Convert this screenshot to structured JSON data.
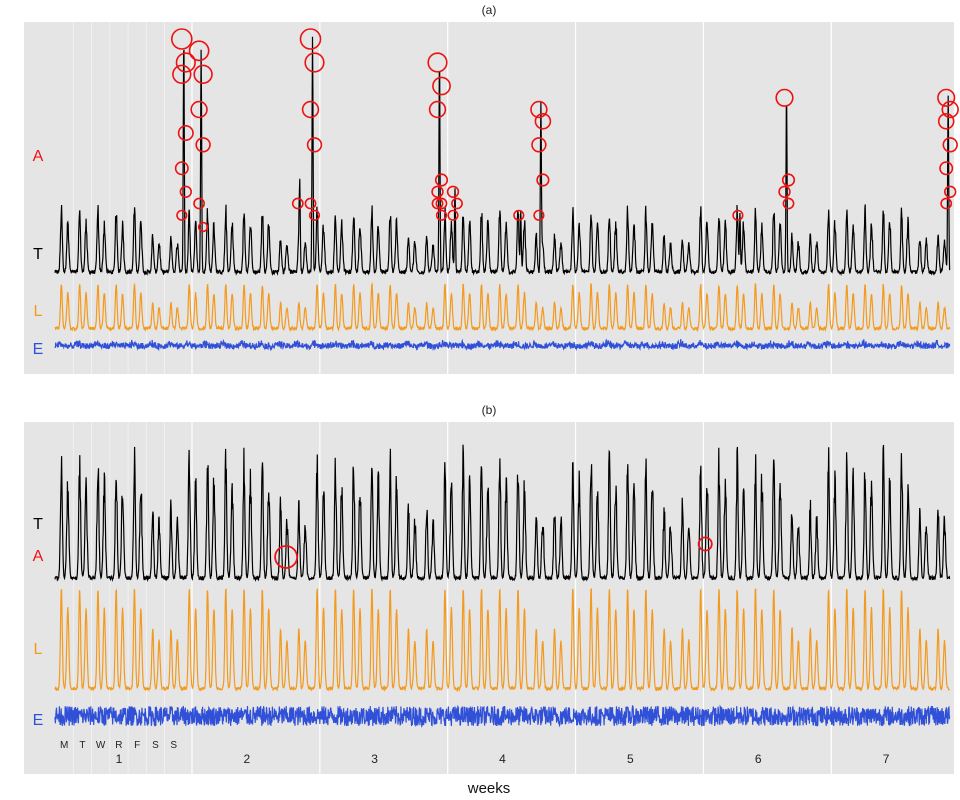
{
  "chart_data": {
    "type": "line",
    "xlabel": "weeks",
    "x_week_ticks": [
      "1",
      "2",
      "3",
      "4",
      "5",
      "6",
      "7"
    ],
    "x_day_ticks": [
      "M",
      "T",
      "W",
      "R",
      "F",
      "S",
      "S"
    ],
    "colors": {
      "T": "#000000",
      "A": "#ee1111",
      "L": "#f39a1e",
      "E": "#3050d8"
    },
    "panels": [
      {
        "title": "(a)",
        "row_labels": [
          "A",
          "T",
          "L",
          "E"
        ],
        "series": [
          {
            "name": "T",
            "description": "total: daily double-peaked profile plus anomaly spikes"
          },
          {
            "name": "L",
            "description": "low-rank weekly component"
          },
          {
            "name": "E",
            "description": "noise component"
          }
        ],
        "anomaly_markers": [
          {
            "day": 7.05,
            "magnitudes": [
              1.0,
              0.9,
              0.85,
              0.6,
              0.45,
              0.35,
              0.25
            ]
          },
          {
            "day": 8.0,
            "magnitudes": [
              0.95,
              0.85,
              0.7,
              0.55,
              0.3,
              0.2
            ]
          },
          {
            "day": 13.4,
            "magnitudes": [
              0.3
            ]
          },
          {
            "day": 14.1,
            "magnitudes": [
              1.0,
              0.9,
              0.7,
              0.55,
              0.3,
              0.25
            ]
          },
          {
            "day": 21.05,
            "magnitudes": [
              0.9,
              0.8,
              0.7,
              0.4,
              0.35,
              0.3,
              0.3,
              0.25
            ]
          },
          {
            "day": 21.9,
            "magnitudes": [
              0.35,
              0.3,
              0.25
            ]
          },
          {
            "day": 25.5,
            "magnitudes": [
              0.25
            ]
          },
          {
            "day": 26.6,
            "magnitudes": [
              0.7,
              0.65,
              0.55,
              0.4,
              0.25
            ]
          },
          {
            "day": 37.5,
            "magnitudes": [
              0.25
            ]
          },
          {
            "day": 40.05,
            "magnitudes": [
              0.75,
              0.4,
              0.35,
              0.3
            ]
          },
          {
            "day": 48.9,
            "magnitudes": [
              0.75,
              0.7,
              0.65,
              0.55,
              0.45,
              0.35,
              0.3
            ]
          }
        ]
      },
      {
        "title": "(b)",
        "row_labels": [
          "T",
          "A",
          "L",
          "E"
        ],
        "series": [
          {
            "name": "T",
            "description": "total: strong double-peaked daily profile"
          },
          {
            "name": "L",
            "description": "low-rank weekly component"
          },
          {
            "name": "E",
            "description": "noise component"
          }
        ],
        "anomaly_markers": [
          {
            "day": 12.65,
            "magnitudes": [
              1.0
            ]
          },
          {
            "day": 35.6,
            "magnitudes": [
              0.45
            ]
          }
        ]
      }
    ]
  }
}
